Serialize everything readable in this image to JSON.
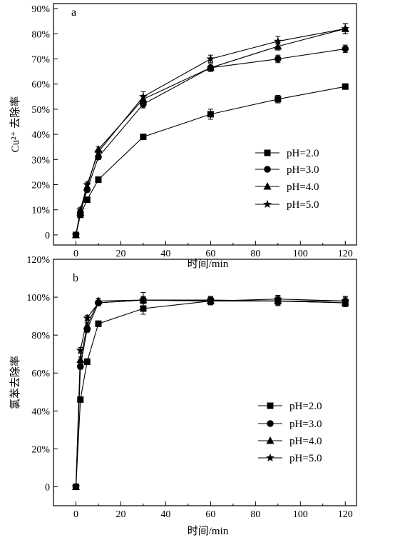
{
  "chart_data": [
    {
      "type": "line",
      "panel_label": "a",
      "xlabel": "时间/min",
      "ylabel": "Cu²⁺ 去除率",
      "xlim": [
        -10,
        125
      ],
      "ylim": [
        -4,
        92
      ],
      "xticks": [
        0,
        20,
        40,
        60,
        80,
        100,
        120
      ],
      "yticks": [
        0,
        10,
        20,
        30,
        40,
        50,
        60,
        70,
        80,
        90
      ],
      "ytick_labels": [
        "0",
        "10%",
        "20%",
        "30%",
        "40%",
        "50%",
        "60%",
        "70%",
        "80%",
        "90%"
      ],
      "legend_position": "lower-right",
      "series": [
        {
          "name": "pH=2.0",
          "marker": "square",
          "x": [
            0,
            2,
            5,
            10,
            30,
            60,
            90,
            120
          ],
          "y": [
            0,
            8,
            14,
            22,
            39,
            48,
            54,
            59
          ],
          "err": [
            0,
            1,
            1,
            1,
            1,
            2,
            1.5,
            1
          ]
        },
        {
          "name": "pH=3.0",
          "marker": "circle",
          "x": [
            0,
            2,
            5,
            10,
            30,
            60,
            90,
            120
          ],
          "y": [
            0,
            9,
            18,
            31,
            52,
            66.5,
            70,
            74
          ],
          "err": [
            0,
            1,
            1,
            1,
            1.5,
            1.5,
            1.5,
            1.5
          ]
        },
        {
          "name": "pH=4.0",
          "marker": "triangle",
          "x": [
            0,
            2,
            5,
            10,
            30,
            60,
            90,
            120
          ],
          "y": [
            0,
            9,
            19,
            34,
            54,
            66.5,
            75,
            82
          ],
          "err": [
            0,
            1,
            1,
            1,
            1.5,
            1.5,
            1.5,
            2
          ]
        },
        {
          "name": "pH=5.0",
          "marker": "star",
          "x": [
            0,
            2,
            5,
            10,
            30,
            60,
            90,
            120
          ],
          "y": [
            0,
            10,
            20,
            33,
            55,
            70,
            77,
            82
          ],
          "err": [
            0,
            1,
            1,
            1,
            2,
            1.5,
            2,
            2
          ]
        }
      ]
    },
    {
      "type": "line",
      "panel_label": "b",
      "xlabel": "时间/min",
      "ylabel": "氯苯去除率",
      "xlim": [
        -10,
        125
      ],
      "ylim": [
        -10,
        120
      ],
      "xticks": [
        0,
        20,
        40,
        60,
        80,
        100,
        120
      ],
      "yticks": [
        0,
        20,
        40,
        60,
        80,
        100,
        120
      ],
      "ytick_labels": [
        "0",
        "20%",
        "40%",
        "60%",
        "80%",
        "100%",
        "120%"
      ],
      "legend_position": "lower-right",
      "series": [
        {
          "name": "pH=2.0",
          "marker": "square",
          "x": [
            0,
            2,
            5,
            10,
            30,
            60,
            90,
            120
          ],
          "y": [
            0,
            46,
            66,
            86,
            94,
            98,
            98,
            97
          ],
          "err": [
            0,
            1,
            1.5,
            1.5,
            3,
            2,
            2,
            2
          ]
        },
        {
          "name": "pH=3.0",
          "marker": "circle",
          "x": [
            0,
            2,
            5,
            10,
            30,
            60,
            90,
            120
          ],
          "y": [
            0,
            63.5,
            83,
            97,
            98.5,
            98.5,
            98,
            98
          ],
          "err": [
            0,
            1.5,
            1.5,
            1.5,
            1.5,
            2,
            2.5,
            2.5
          ]
        },
        {
          "name": "pH=4.0",
          "marker": "triangle",
          "x": [
            0,
            2,
            5,
            10,
            30,
            60,
            90,
            120
          ],
          "y": [
            0,
            67,
            85,
            98,
            98.5,
            98,
            98,
            97
          ],
          "err": [
            0,
            1.5,
            1.5,
            1.5,
            2,
            2,
            2,
            2
          ]
        },
        {
          "name": "pH=5.0",
          "marker": "star",
          "x": [
            0,
            2,
            5,
            10,
            30,
            60,
            90,
            120
          ],
          "y": [
            0,
            72,
            89,
            97,
            98.5,
            98,
            99,
            98
          ],
          "err": [
            0,
            1.5,
            1.5,
            1.5,
            4,
            2,
            2,
            2
          ]
        }
      ]
    }
  ]
}
